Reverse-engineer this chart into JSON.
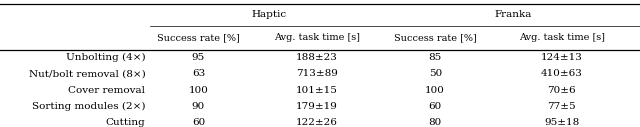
{
  "title_haptic": "Haptic",
  "title_franka": "Franka",
  "col_headers": [
    "Success rate [%]",
    "Avg. task time [s]",
    "Success rate [%]",
    "Avg. task time [s]"
  ],
  "row_labels": [
    "Unbolting (4×)",
    "Nut/bolt removal (8×)",
    "Cover removal",
    "Sorting modules (2×)",
    "Cutting"
  ],
  "table_data": [
    [
      "95",
      "188±23",
      "85",
      "124±13"
    ],
    [
      "63",
      "713±89",
      "50",
      "410±63"
    ],
    [
      "100",
      "101±15",
      "100",
      "70±6"
    ],
    [
      "90",
      "179±19",
      "60",
      "77±5"
    ],
    [
      "60",
      "122±26",
      "80",
      "95±18"
    ]
  ],
  "bg_color": "#ffffff",
  "text_color": "#000000",
  "cell_fontsize": 7.5
}
